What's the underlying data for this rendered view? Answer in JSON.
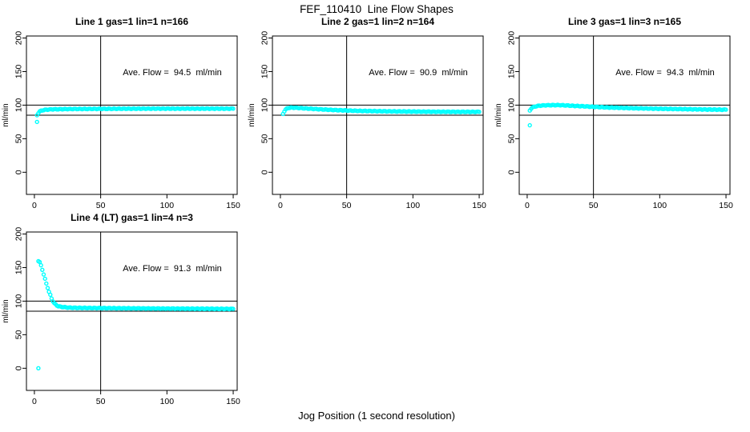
{
  "chart_data": {
    "type": "scatter",
    "title": "FEF_110410  Line Flow Shapes",
    "xlabel": "Jog Position (1 second resolution)",
    "ylabel": "ml/min",
    "point_color": "#00ffff",
    "line_color": "#000000",
    "xlim": [
      -6,
      153
    ],
    "ylim": [
      -33,
      203
    ],
    "xticks": [
      0,
      50,
      100,
      150
    ],
    "yticks": [
      0,
      50,
      100,
      150,
      200
    ],
    "ref_lines_h": [
      100,
      85
    ],
    "ref_line_v": 50,
    "legend_position": "none",
    "grid": false,
    "panels": [
      {
        "title": "Line 1 gas=1 lin=1 n=166",
        "annotation": "Ave. Flow =  94.5  ml/min",
        "ave_flow_ml_min": 94.5,
        "n": 166,
        "gas": 1,
        "lin": 1,
        "main": [
          [
            2,
            85
          ],
          [
            3,
            88.5
          ],
          [
            4,
            90.5
          ],
          [
            5,
            91.5
          ],
          [
            6,
            92.3
          ],
          [
            8,
            93
          ],
          [
            10,
            93.4
          ],
          [
            14,
            93.8
          ],
          [
            20,
            94
          ],
          [
            30,
            94.3
          ],
          [
            40,
            94.4
          ],
          [
            50,
            94.5
          ],
          [
            70,
            94.7
          ],
          [
            90,
            94.8
          ],
          [
            110,
            94.8
          ],
          [
            130,
            94.8
          ],
          [
            150,
            94.8
          ]
        ],
        "outliers": [
          [
            2,
            75
          ]
        ]
      },
      {
        "title": "Line 2 gas=1 lin=2 n=164",
        "annotation": "Ave. Flow =  90.9  ml/min",
        "ave_flow_ml_min": 90.9,
        "n": 164,
        "gas": 1,
        "lin": 2,
        "main": [
          [
            2,
            87
          ],
          [
            3,
            91
          ],
          [
            4,
            93.5
          ],
          [
            5,
            95
          ],
          [
            6,
            95.8
          ],
          [
            8,
            96.2
          ],
          [
            10,
            96.2
          ],
          [
            14,
            95.8
          ],
          [
            20,
            95
          ],
          [
            30,
            93.8
          ],
          [
            40,
            92.8
          ],
          [
            50,
            92
          ],
          [
            60,
            91.4
          ],
          [
            80,
            90.8
          ],
          [
            100,
            90.4
          ],
          [
            120,
            90.1
          ],
          [
            140,
            90
          ],
          [
            150,
            90
          ]
        ],
        "outliers": []
      },
      {
        "title": "Line 3 gas=1 lin=3 n=165",
        "annotation": "Ave. Flow =  94.3  ml/min",
        "ave_flow_ml_min": 94.3,
        "n": 165,
        "gas": 1,
        "lin": 3,
        "main": [
          [
            2,
            92
          ],
          [
            3,
            95
          ],
          [
            4,
            96.5
          ],
          [
            6,
            98
          ],
          [
            8,
            98.8
          ],
          [
            10,
            99.3
          ],
          [
            14,
            99.8
          ],
          [
            20,
            100
          ],
          [
            25,
            100
          ],
          [
            30,
            99.5
          ],
          [
            40,
            98.5
          ],
          [
            50,
            97.5
          ],
          [
            60,
            96.6
          ],
          [
            80,
            95.4
          ],
          [
            100,
            94.6
          ],
          [
            120,
            94
          ],
          [
            140,
            93.4
          ],
          [
            150,
            93.2
          ]
        ],
        "outliers": [
          [
            2,
            70
          ]
        ]
      },
      {
        "title": "Line 4 (LT) gas=1 lin=4 n=3",
        "annotation": "Ave. Flow =  91.3  ml/min",
        "ave_flow_ml_min": 91.3,
        "n": 3,
        "gas": 1,
        "lin": 4,
        "main": [
          [
            3,
            160
          ],
          [
            4,
            158
          ],
          [
            5,
            153
          ],
          [
            6,
            147
          ],
          [
            7,
            140
          ],
          [
            8,
            133
          ],
          [
            9,
            126
          ],
          [
            10,
            120
          ],
          [
            11,
            114
          ],
          [
            12,
            109
          ],
          [
            13,
            104
          ],
          [
            14,
            100
          ],
          [
            15,
            97
          ],
          [
            16,
            95
          ],
          [
            17,
            93.5
          ],
          [
            18,
            92.5
          ],
          [
            20,
            91.5
          ],
          [
            25,
            90.5
          ],
          [
            30,
            90
          ],
          [
            40,
            89.8
          ],
          [
            50,
            89.6
          ],
          [
            70,
            89.3
          ],
          [
            90,
            89
          ],
          [
            110,
            88.8
          ],
          [
            130,
            88.6
          ],
          [
            150,
            88.4
          ]
        ],
        "outliers": [
          [
            3,
            0
          ]
        ]
      }
    ]
  }
}
